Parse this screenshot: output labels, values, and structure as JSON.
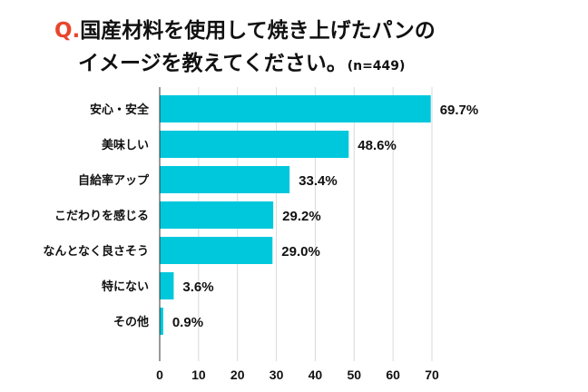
{
  "title": {
    "prefix": "Q.",
    "line1": "国産材料を使用して焼き上げたパンの",
    "line2": "イメージを教えてください。",
    "sample": "(n=449)"
  },
  "colors": {
    "bar": "#00c8dc",
    "grid": "#d9d9d9",
    "title_prefix": "#e8452c",
    "text": "#111111"
  },
  "chart_data": {
    "type": "bar",
    "orientation": "horizontal",
    "categories": [
      "安心・安全",
      "美味しい",
      "自給率アップ",
      "こだわりを感じる",
      "なんとなく良さそう",
      "特にない",
      "その他"
    ],
    "values": [
      69.7,
      48.6,
      33.4,
      29.2,
      29.0,
      3.6,
      0.9
    ],
    "value_labels": [
      "69.7%",
      "48.6%",
      "33.4%",
      "29.2%",
      "29.0%",
      "3.6%",
      "0.9%"
    ],
    "xlim": [
      0,
      70
    ],
    "xticks": [
      0,
      10,
      20,
      30,
      40,
      50,
      60,
      70
    ],
    "grid": true,
    "legend": "none"
  }
}
